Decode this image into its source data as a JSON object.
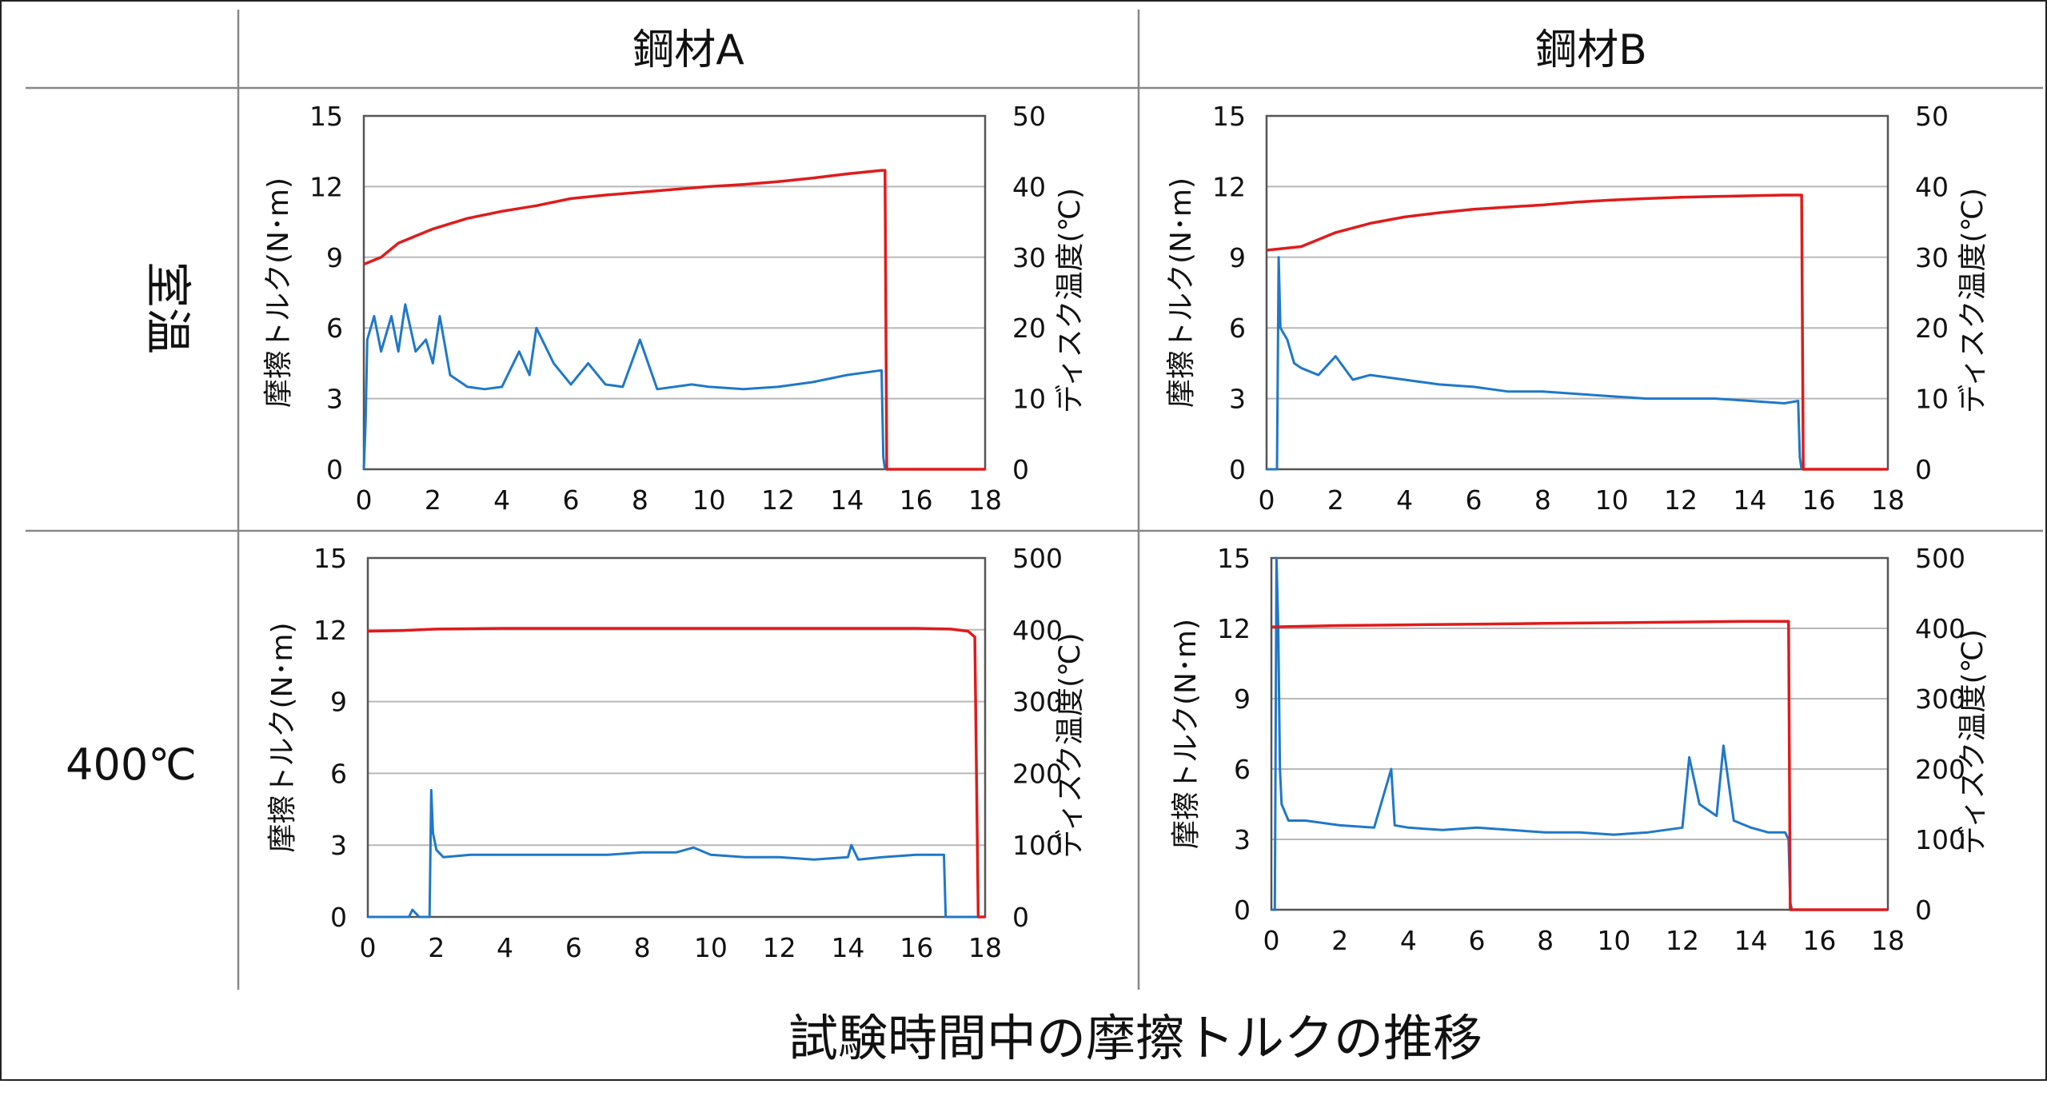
{
  "columns": [
    "鋼材A",
    "鋼材B"
  ],
  "rows": [
    "室温",
    "400℃"
  ],
  "caption": "試験時間中の摩擦トルクの推移",
  "colors": {
    "torque": "#1f78c8",
    "temperature": "#e01b1b",
    "grid": "#b8b8b8",
    "frame": "#555555"
  },
  "chart_data": [
    {
      "type": "line",
      "id": "A_room",
      "xlim": [
        0,
        18
      ],
      "xticks": [
        0,
        2,
        4,
        6,
        8,
        10,
        12,
        14,
        16,
        18
      ],
      "ylim": [
        0,
        15
      ],
      "yticks": [
        0,
        3,
        6,
        9,
        12,
        15
      ],
      "y2lim": [
        0,
        50
      ],
      "y2ticks": [
        0,
        10,
        20,
        30,
        40,
        50
      ],
      "ylabel": "摩擦トルク(N･m)",
      "y2label": "ディスク温度(℃)",
      "series": [
        {
          "axis": "left",
          "color": "#1f78c8",
          "x": [
            0,
            0.05,
            0.1,
            0.3,
            0.5,
            0.8,
            1.0,
            1.2,
            1.5,
            1.8,
            2.0,
            2.2,
            2.5,
            3.0,
            3.5,
            4.0,
            4.5,
            4.8,
            5.0,
            5.5,
            6.0,
            6.5,
            7.0,
            7.5,
            8.0,
            8.5,
            9.0,
            9.5,
            10.0,
            11.0,
            12.0,
            13.0,
            14.0,
            15.0,
            15.05,
            15.1
          ],
          "y": [
            0,
            2.0,
            5.5,
            6.5,
            5.0,
            6.5,
            5.0,
            7.0,
            5.0,
            5.5,
            4.5,
            6.5,
            4.0,
            3.5,
            3.4,
            3.5,
            5.0,
            4.0,
            6.0,
            4.5,
            3.6,
            4.5,
            3.6,
            3.5,
            5.5,
            3.4,
            3.5,
            3.6,
            3.5,
            3.4,
            3.5,
            3.7,
            4.0,
            4.2,
            0.5,
            0
          ]
        },
        {
          "axis": "right",
          "color": "#e01b1b",
          "x": [
            0,
            0.5,
            1,
            2,
            3,
            4,
            5,
            6,
            7,
            8,
            9,
            10,
            11,
            12,
            13,
            14,
            15,
            15.1,
            15.15,
            18
          ],
          "y": [
            29,
            30,
            32,
            34,
            35.5,
            36.5,
            37.3,
            38.3,
            38.8,
            39.2,
            39.6,
            40.0,
            40.3,
            40.7,
            41.2,
            41.8,
            42.3,
            42.3,
            0,
            0
          ]
        }
      ]
    },
    {
      "type": "line",
      "id": "B_room",
      "xlim": [
        0,
        18
      ],
      "xticks": [
        0,
        2,
        4,
        6,
        8,
        10,
        12,
        14,
        16,
        18
      ],
      "ylim": [
        0,
        15
      ],
      "yticks": [
        0,
        3,
        6,
        9,
        12,
        15
      ],
      "y2lim": [
        0,
        50
      ],
      "y2ticks": [
        0,
        10,
        20,
        30,
        40,
        50
      ],
      "ylabel": "摩擦トルク(N･m)",
      "y2label": "ディスク温度(℃)",
      "series": [
        {
          "axis": "left",
          "color": "#1f78c8",
          "x": [
            0,
            0.3,
            0.35,
            0.4,
            0.6,
            0.8,
            1.0,
            1.5,
            2.0,
            2.5,
            3.0,
            4.0,
            5.0,
            6.0,
            7.0,
            8.0,
            9.0,
            10.0,
            11.0,
            12.0,
            13.0,
            14.0,
            15.0,
            15.4,
            15.45,
            15.5
          ],
          "y": [
            0,
            0,
            9.0,
            6.0,
            5.5,
            4.5,
            4.3,
            4.0,
            4.8,
            3.8,
            4.0,
            3.8,
            3.6,
            3.5,
            3.3,
            3.3,
            3.2,
            3.1,
            3.0,
            3.0,
            3.0,
            2.9,
            2.8,
            2.9,
            0.5,
            0
          ]
        },
        {
          "axis": "right",
          "color": "#e01b1b",
          "x": [
            0,
            1,
            2,
            3,
            4,
            5,
            6,
            7,
            8,
            9,
            10,
            11,
            12,
            13,
            14,
            15,
            15.5,
            15.55,
            18
          ],
          "y": [
            31,
            31.5,
            33.5,
            34.8,
            35.7,
            36.3,
            36.8,
            37.1,
            37.4,
            37.8,
            38.1,
            38.3,
            38.5,
            38.6,
            38.7,
            38.8,
            38.8,
            0,
            0
          ]
        }
      ]
    },
    {
      "type": "line",
      "id": "A_400",
      "xlim": [
        0,
        18
      ],
      "xticks": [
        0,
        2,
        4,
        6,
        8,
        10,
        12,
        14,
        16,
        18
      ],
      "ylim": [
        0,
        15
      ],
      "yticks": [
        0,
        3,
        6,
        9,
        12,
        15
      ],
      "y2lim": [
        0,
        500
      ],
      "y2ticks": [
        0,
        100,
        200,
        300,
        400,
        500
      ],
      "ylabel": "摩擦トルク(N･m)",
      "y2label": "ディスク温度(℃)",
      "series": [
        {
          "axis": "left",
          "color": "#1f78c8",
          "x": [
            0,
            1.2,
            1.3,
            1.5,
            1.8,
            1.85,
            1.9,
            2.0,
            2.2,
            3,
            4,
            5,
            6,
            7,
            8,
            9,
            9.5,
            10,
            11,
            12,
            13,
            14,
            14.1,
            14.3,
            15,
            16,
            16.8,
            16.85,
            16.9,
            17,
            18
          ],
          "y": [
            0,
            0,
            0.3,
            0,
            0,
            5.3,
            3.5,
            2.8,
            2.5,
            2.6,
            2.6,
            2.6,
            2.6,
            2.6,
            2.7,
            2.7,
            2.9,
            2.6,
            2.5,
            2.5,
            2.4,
            2.5,
            3.0,
            2.4,
            2.5,
            2.6,
            2.6,
            0,
            0,
            0,
            0
          ]
        },
        {
          "axis": "right",
          "color": "#e01b1b",
          "x": [
            0,
            1,
            2,
            4,
            6,
            8,
            10,
            12,
            14,
            16,
            17,
            17.5,
            17.7,
            17.8,
            18
          ],
          "y": [
            398,
            399,
            401,
            402,
            402,
            402,
            402,
            402,
            402,
            402,
            401,
            398,
            390,
            0,
            0
          ]
        }
      ]
    },
    {
      "type": "line",
      "id": "B_400",
      "xlim": [
        0,
        18
      ],
      "xticks": [
        0,
        2,
        4,
        6,
        8,
        10,
        12,
        14,
        16,
        18
      ],
      "ylim": [
        0,
        15
      ],
      "yticks": [
        0,
        3,
        6,
        9,
        12,
        15
      ],
      "y2lim": [
        0,
        500
      ],
      "y2ticks": [
        0,
        100,
        200,
        300,
        400,
        500
      ],
      "ylabel": "摩擦トルク(N･m)",
      "y2label": "ディスク温度(℃)",
      "series": [
        {
          "axis": "left",
          "color": "#1f78c8",
          "x": [
            0,
            0.1,
            0.15,
            0.2,
            0.25,
            0.3,
            0.5,
            1,
            2,
            3,
            3.5,
            3.6,
            4,
            5,
            6,
            7,
            8,
            9,
            10,
            11,
            12,
            12.2,
            12.5,
            13,
            13.2,
            13.5,
            14,
            14.5,
            15,
            15.1,
            15.15,
            15.2,
            18
          ],
          "y": [
            0,
            0,
            15,
            12,
            6,
            4.5,
            3.8,
            3.8,
            3.6,
            3.5,
            6.0,
            3.6,
            3.5,
            3.4,
            3.5,
            3.4,
            3.3,
            3.3,
            3.2,
            3.3,
            3.5,
            6.5,
            4.5,
            4.0,
            7.0,
            3.8,
            3.5,
            3.3,
            3.3,
            3.0,
            0.3,
            0,
            0
          ]
        },
        {
          "axis": "right",
          "color": "#e01b1b",
          "x": [
            0,
            1,
            2,
            4,
            6,
            8,
            10,
            12,
            14,
            15.1,
            15.15,
            18
          ],
          "y": [
            402,
            403,
            404,
            405,
            406,
            407,
            408,
            409,
            410,
            410,
            0,
            0
          ]
        }
      ]
    }
  ]
}
